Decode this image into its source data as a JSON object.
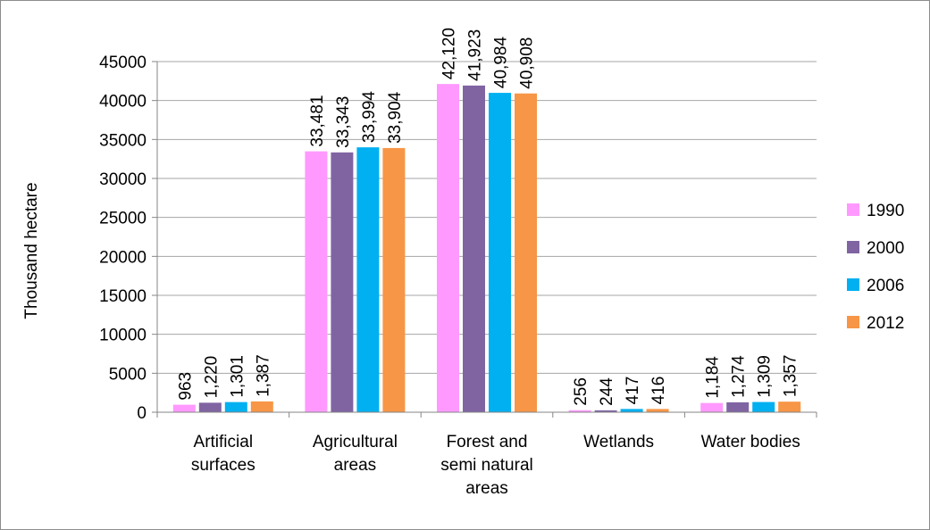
{
  "chart_data": {
    "type": "bar",
    "title": "",
    "xlabel": "",
    "ylabel": "Thousand  hectare",
    "ylim": [
      0,
      45000
    ],
    "yticks": [
      "0",
      "5000",
      "10000",
      "15000",
      "20000",
      "25000",
      "30000",
      "35000",
      "40000",
      "45000"
    ],
    "grid": true,
    "legend_position": "right",
    "categories": [
      [
        "Artificial",
        "surfaces"
      ],
      [
        "Agricultural",
        "areas"
      ],
      [
        "Forest and",
        "semi natural",
        "areas"
      ],
      [
        "Wetlands"
      ],
      [
        "Water bodies"
      ]
    ],
    "series": [
      {
        "name": "1990",
        "color": "#ff99ff",
        "values": [
          963,
          33481,
          42120,
          256,
          1184
        ],
        "labels": [
          "963",
          "33,481",
          "42,120",
          "256",
          "1,184"
        ]
      },
      {
        "name": "2000",
        "color": "#8064a2",
        "values": [
          1220,
          33343,
          41923,
          244,
          1274
        ],
        "labels": [
          "1,220",
          "33,343",
          "41,923",
          "244",
          "1,274"
        ]
      },
      {
        "name": "2006",
        "color": "#00b0f0",
        "values": [
          1301,
          33994,
          40984,
          417,
          1309
        ],
        "labels": [
          "1,301",
          "33,994",
          "40,984",
          "417",
          "1,309"
        ]
      },
      {
        "name": "2012",
        "color": "#f79646",
        "values": [
          1387,
          33904,
          40908,
          416,
          1357
        ],
        "labels": [
          "1,387",
          "33,904",
          "40,908",
          "416",
          "1,357"
        ]
      }
    ]
  }
}
